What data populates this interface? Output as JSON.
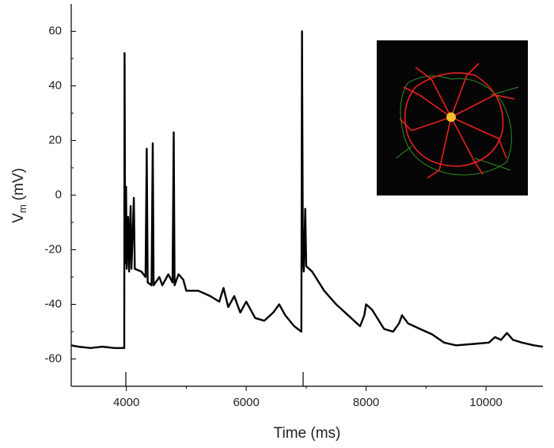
{
  "chart_data": {
    "type": "line",
    "x_label": "Time (ms)",
    "y_label": [
      "V",
      "m",
      "(mV)"
    ],
    "xlim": [
      3080,
      10950
    ],
    "ylim": [
      -70,
      70
    ],
    "xticks": [
      4000,
      6000,
      8000,
      10000
    ],
    "xticks_minor": [
      5000,
      7000,
      9000
    ],
    "yticks": [
      -60,
      -40,
      -20,
      0,
      20,
      40,
      60
    ],
    "yticks_minor": [
      -50,
      -30,
      -10,
      10,
      30,
      50
    ],
    "series": [
      {
        "color": "#000000",
        "x": [
          3080,
          3200,
          3400,
          3600,
          3800,
          3965,
          3970,
          3980,
          3995,
          4005,
          4030,
          4045,
          4070,
          4085,
          4125,
          4140,
          4250,
          4320,
          4340,
          4355,
          4420,
          4440,
          4455,
          4550,
          4600,
          4700,
          4770,
          4790,
          4805,
          4870,
          4950,
          5000,
          5200,
          5400,
          5550,
          5620,
          5700,
          5800,
          5900,
          6000,
          6150,
          6300,
          6450,
          6550,
          6650,
          6800,
          6920,
          6930,
          6945,
          6960,
          6985,
          7000,
          7100,
          7300,
          7500,
          7600,
          7700,
          7800,
          7900,
          7970,
          8000,
          8100,
          8300,
          8450,
          8550,
          8600,
          8700,
          8900,
          9100,
          9300,
          9500,
          9800,
          10050,
          10150,
          10250,
          10350,
          10450,
          10600,
          10800,
          10950
        ],
        "values": [
          -55,
          -55.5,
          -56,
          -55.5,
          -56,
          -56,
          52,
          -25,
          3,
          -27,
          -8,
          -28,
          -4,
          -27,
          -1,
          -27,
          -28,
          -30,
          17,
          -32,
          -33,
          19,
          -33,
          -30,
          -33,
          -29,
          -32,
          23,
          -33,
          -29,
          -31,
          -35,
          -35,
          -37,
          -39,
          -34,
          -41,
          -37,
          -43,
          -39,
          -45,
          -46,
          -43,
          -40,
          -44,
          -48,
          -50,
          60,
          -22,
          -28,
          -5,
          -26,
          -28,
          -35,
          -40,
          -42,
          -44,
          -46,
          -48,
          -44,
          -40,
          -42,
          -49,
          -50,
          -47,
          -44,
          -47,
          -49,
          -51,
          -54,
          -55,
          -54.5,
          -54,
          -52,
          -53,
          -50.5,
          -53,
          -54,
          -55,
          -55.5
        ]
      }
    ]
  }
}
